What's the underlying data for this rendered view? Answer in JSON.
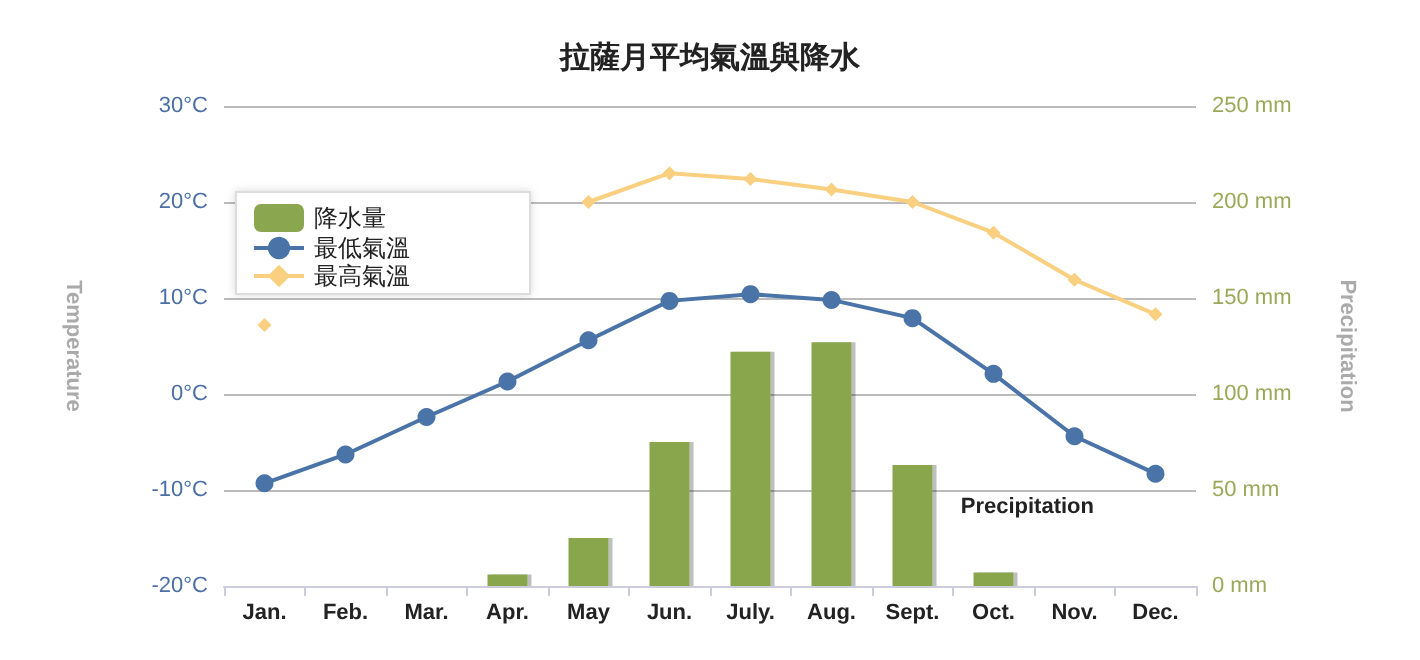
{
  "chart_data": {
    "type": "bar",
    "title": "拉薩月平均氣溫與降水",
    "categories": [
      "Jan.",
      "Feb.",
      "Mar.",
      "Apr.",
      "May",
      "Jun.",
      "July.",
      "Aug.",
      "Sept.",
      "Oct.",
      "Nov.",
      "Dec."
    ],
    "series": [
      {
        "name": "降水量",
        "axis": "y2",
        "color": "#8aa64e",
        "values": [
          0,
          0,
          0,
          6,
          25,
          75,
          122,
          127,
          63,
          7,
          0,
          0
        ]
      },
      {
        "name": "最低氣溫",
        "type": "line",
        "color": "#4a74a8",
        "marker": "circle",
        "values": [
          -9.3,
          -6.3,
          -2.4,
          1.3,
          5.6,
          9.7,
          10.4,
          9.8,
          7.9,
          2.1,
          -4.4,
          -8.3
        ]
      },
      {
        "name": "最高氣溫",
        "type": "line",
        "color": "#f9cf80",
        "marker": "diamond",
        "values": [
          7.2,
          null,
          null,
          null,
          20,
          23,
          22.4,
          21.3,
          20,
          16.8,
          11.9,
          8.3
        ]
      }
    ],
    "ylabel": "Temperature",
    "y2label": "Precipitation",
    "ylim": [
      -20,
      30
    ],
    "yticks": [
      {
        "value": -20,
        "label": "-20°C"
      },
      {
        "value": -10,
        "label": "-10°C"
      },
      {
        "value": 0,
        "label": "0°C"
      },
      {
        "value": 10,
        "label": "10°C"
      },
      {
        "value": 20,
        "label": "20°C"
      },
      {
        "value": 30,
        "label": "30°C"
      }
    ],
    "y2lim": [
      0,
      250
    ],
    "y2ticks": [
      {
        "value": 0,
        "label": "0 mm"
      },
      {
        "value": 50,
        "label": "50 mm"
      },
      {
        "value": 100,
        "label": "100 mm"
      },
      {
        "value": 150,
        "label": "150 mm"
      },
      {
        "value": 200,
        "label": "200 mm"
      },
      {
        "value": 250,
        "label": "250 mm"
      }
    ],
    "annotations": [
      "Precipitation"
    ],
    "grid": "y",
    "legend": "top left"
  }
}
